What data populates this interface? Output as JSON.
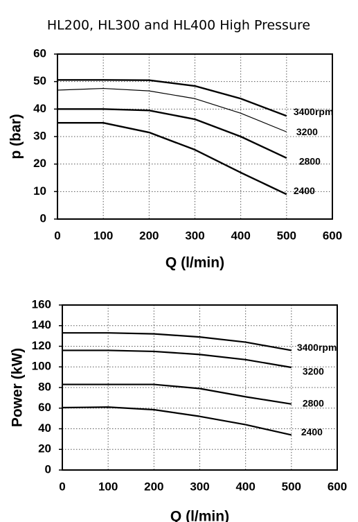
{
  "chart_data": [
    {
      "type": "line",
      "title": "HL200, HL300 and HL400 High Pressure",
      "xlabel": "Q (l/min)",
      "ylabel": "p (bar)",
      "xlim": [
        0,
        600
      ],
      "xticks": [
        0,
        100,
        200,
        300,
        400,
        500,
        600
      ],
      "ylim": [
        0,
        60
      ],
      "yticks": [
        0,
        10,
        20,
        30,
        40,
        50,
        60
      ],
      "grid": true,
      "x": [
        0,
        100,
        200,
        300,
        400,
        500
      ],
      "series": [
        {
          "name": "3400rpm",
          "color": "#000000",
          "values": [
            50.6,
            50.6,
            50.5,
            48.4,
            43.8,
            37.5
          ]
        },
        {
          "name": "3200",
          "color": "#000000",
          "values": [
            46.9,
            47.5,
            46.6,
            43.8,
            38.5,
            31.7
          ]
        },
        {
          "name": "2800",
          "color": "#000000",
          "values": [
            40,
            40,
            39.5,
            36.3,
            30,
            22.2
          ]
        },
        {
          "name": "2400",
          "color": "#000000",
          "values": [
            35,
            35,
            31.5,
            25.2,
            16.9,
            9
          ]
        }
      ]
    },
    {
      "type": "line",
      "xlabel": "Q (l/min)",
      "ylabel": "Power (kW)",
      "xlim": [
        0,
        600
      ],
      "xticks": [
        0,
        100,
        200,
        300,
        400,
        500,
        600
      ],
      "ylim": [
        0,
        160
      ],
      "yticks": [
        0,
        20,
        40,
        60,
        80,
        100,
        120,
        140,
        160
      ],
      "grid": true,
      "x": [
        0,
        100,
        200,
        300,
        400,
        500
      ],
      "series": [
        {
          "name": "3400rpm",
          "color": "#000000",
          "values": [
            133,
            133,
            132,
            129,
            124,
            116
          ]
        },
        {
          "name": "3200",
          "color": "#000000",
          "values": [
            116,
            116,
            115,
            112,
            107,
            99.5
          ]
        },
        {
          "name": "2800",
          "color": "#000000",
          "values": [
            83,
            83,
            83,
            79,
            71,
            64
          ]
        },
        {
          "name": "2400",
          "color": "#000000",
          "values": [
            60.5,
            61,
            58.5,
            52,
            44,
            34
          ]
        }
      ]
    }
  ]
}
